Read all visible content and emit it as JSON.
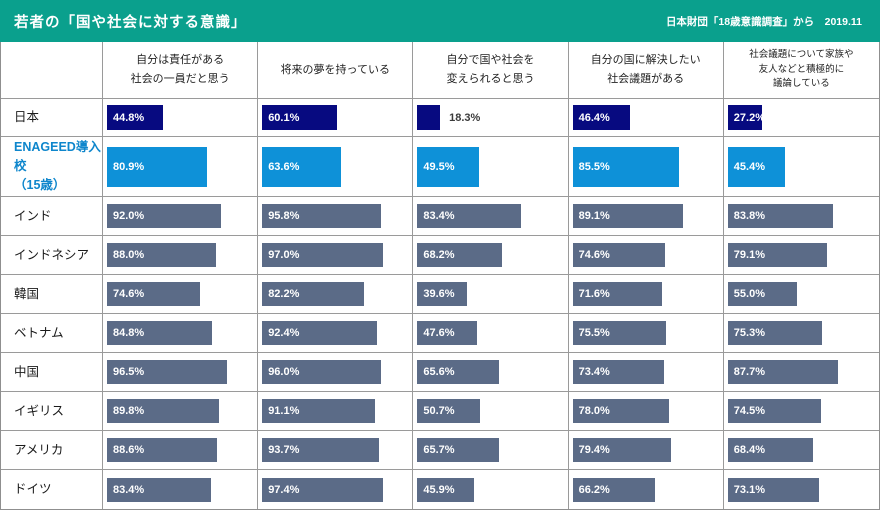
{
  "header": {
    "title": "若者の「国や社会に対する意識」",
    "source": "日本財団「18歳意識調査」から　2019.11"
  },
  "colors": {
    "header_bg": "#0aa08d",
    "japan_bar": "#070a80",
    "enageed_bar": "#0e91d8",
    "default_bar": "#5b6b87",
    "enageed_label": "#0e86cc"
  },
  "chart_data": {
    "type": "bar",
    "orientation": "horizontal",
    "unit": "%",
    "xlim": [
      0,
      100
    ],
    "columns": [
      "自分は責任がある\n社会の一員だと思う",
      "将来の夢を持っている",
      "自分で国や社会を\n変えられると思う",
      "自分の国に解決したい\n社会議題がある",
      "社会議題について家族や\n友人などと積極的に\n議論している"
    ],
    "rows": [
      {
        "label": "日本",
        "variant": "japan",
        "values": [
          "44.8%",
          "60.1%",
          "18.3%",
          "46.4%",
          "27.2%"
        ]
      },
      {
        "label": "ENAGEED導入校\n（15歳）",
        "variant": "enageed",
        "values": [
          "80.9%",
          "63.6%",
          "49.5%",
          "85.5%",
          "45.4%"
        ]
      },
      {
        "label": "インド",
        "variant": "default",
        "values": [
          "92.0%",
          "95.8%",
          "83.4%",
          "89.1%",
          "83.8%"
        ]
      },
      {
        "label": "インドネシア",
        "variant": "default",
        "values": [
          "88.0%",
          "97.0%",
          "68.2%",
          "74.6%",
          "79.1%"
        ]
      },
      {
        "label": "韓国",
        "variant": "default",
        "values": [
          "74.6%",
          "82.2%",
          "39.6%",
          "71.6%",
          "55.0%"
        ]
      },
      {
        "label": "ベトナム",
        "variant": "default",
        "values": [
          "84.8%",
          "92.4%",
          "47.6%",
          "75.5%",
          "75.3%"
        ]
      },
      {
        "label": "中国",
        "variant": "default",
        "values": [
          "96.5%",
          "96.0%",
          "65.6%",
          "73.4%",
          "87.7%"
        ]
      },
      {
        "label": "イギリス",
        "variant": "default",
        "values": [
          "89.8%",
          "91.1%",
          "50.7%",
          "78.0%",
          "74.5%"
        ]
      },
      {
        "label": "アメリカ",
        "variant": "default",
        "values": [
          "88.6%",
          "93.7%",
          "65.7%",
          "79.4%",
          "68.4%"
        ]
      },
      {
        "label": "ドイツ",
        "variant": "default",
        "values": [
          "83.4%",
          "97.4%",
          "45.9%",
          "66.2%",
          "73.1%"
        ]
      }
    ]
  }
}
